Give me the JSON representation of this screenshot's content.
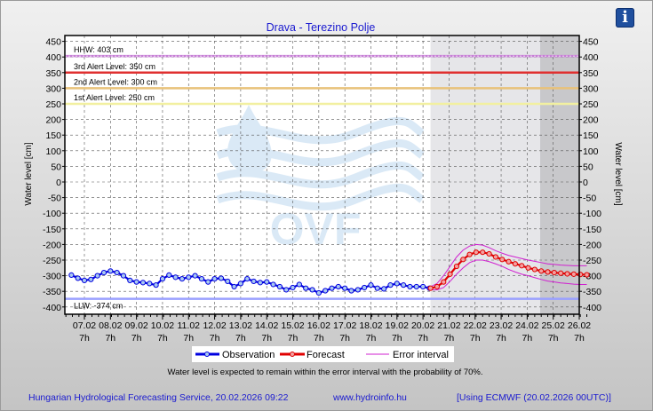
{
  "info_icon": "info-icon",
  "chart_data": {
    "type": "line",
    "title": "Drava - Terezino Polje",
    "ylabel": "Water level [cm]",
    "ylabel_right": "Water level [cm]",
    "ylim": [
      -425,
      460
    ],
    "yticks": [
      450,
      400,
      350,
      300,
      250,
      200,
      150,
      100,
      50,
      0,
      -50,
      -100,
      -150,
      -200,
      -250,
      -300,
      -350,
      -400
    ],
    "xlim_days": [
      6.25,
      26.29
    ],
    "xticks": [
      {
        "day": 7,
        "label": "07.02",
        "sub": "7h"
      },
      {
        "day": 8,
        "label": "08.02",
        "sub": "7h"
      },
      {
        "day": 9,
        "label": "09.02",
        "sub": "7h"
      },
      {
        "day": 10,
        "label": "10.02",
        "sub": "7h"
      },
      {
        "day": 11,
        "label": "11.02",
        "sub": "7h"
      },
      {
        "day": 12,
        "label": "12.02",
        "sub": "7h"
      },
      {
        "day": 13,
        "label": "13.02",
        "sub": "7h"
      },
      {
        "day": 14,
        "label": "14.02",
        "sub": "7h"
      },
      {
        "day": 15,
        "label": "15.02",
        "sub": "7h"
      },
      {
        "day": 16,
        "label": "16.02",
        "sub": "7h"
      },
      {
        "day": 17,
        "label": "17.02",
        "sub": "7h"
      },
      {
        "day": 18,
        "label": "18.02",
        "sub": "7h"
      },
      {
        "day": 19,
        "label": "19.02",
        "sub": "7h"
      },
      {
        "day": 20,
        "label": "20.02",
        "sub": "7h"
      },
      {
        "day": 21,
        "label": "21.02",
        "sub": "7h"
      },
      {
        "day": 22,
        "label": "22.02",
        "sub": "7h"
      },
      {
        "day": 23,
        "label": "23.02",
        "sub": "7h"
      },
      {
        "day": 24,
        "label": "24.02",
        "sub": "7h"
      },
      {
        "day": 25,
        "label": "25.02",
        "sub": "7h"
      },
      {
        "day": 26,
        "label": "26.02",
        "sub": "7h"
      }
    ],
    "forecast_region_start_day": 20.29,
    "extended_region_start_day": 24.5,
    "levels": [
      {
        "name": "HHW",
        "label": "HHW: 403 cm",
        "value": 403,
        "color": "#c77fd6",
        "dotted": true
      },
      {
        "name": "alert-3",
        "label": "3rd Alert Level: 350 cm",
        "value": 350,
        "color": "#e03030"
      },
      {
        "name": "alert-2",
        "label": "2nd Alert Level: 300 cm",
        "value": 300,
        "color": "#e8c27a"
      },
      {
        "name": "alert-1",
        "label": "1st Alert Level: 250 cm",
        "value": 250,
        "color": "#f2f0a0"
      },
      {
        "name": "LLW",
        "label": "LLW: -374 cm",
        "value": -374,
        "color": "#9aa0ff"
      }
    ],
    "series": [
      {
        "name": "Observation",
        "color": "#0000e0",
        "start_day": 6.5,
        "step_days": 0.25,
        "values": [
          -298,
          -308,
          -315,
          -312,
          -300,
          -290,
          -285,
          -290,
          -300,
          -315,
          -320,
          -322,
          -325,
          -330,
          -310,
          -298,
          -305,
          -310,
          -305,
          -300,
          -310,
          -320,
          -310,
          -308,
          -318,
          -335,
          -325,
          -310,
          -318,
          -322,
          -320,
          -328,
          -335,
          -345,
          -338,
          -328,
          -340,
          -345,
          -355,
          -348,
          -340,
          -335,
          -340,
          -348,
          -345,
          -338,
          -330,
          -340,
          -342,
          -330,
          -325,
          -330,
          -335,
          -335,
          -335,
          -340
        ]
      },
      {
        "name": "Forecast",
        "color": "#e00000",
        "start_day": 20.29,
        "step_days": 0.25,
        "values": [
          -340,
          -335,
          -320,
          -295,
          -270,
          -248,
          -232,
          -225,
          -225,
          -230,
          -240,
          -248,
          -255,
          -262,
          -268,
          -275,
          -280,
          -285,
          -288,
          -290,
          -292,
          -294,
          -295,
          -296,
          -297
        ]
      },
      {
        "name": "Error interval",
        "color": "#d020d0",
        "start_day": 20.29,
        "step_days": 0.25,
        "upper": [
          -335,
          -325,
          -300,
          -270,
          -240,
          -218,
          -205,
          -200,
          -202,
          -210,
          -220,
          -228,
          -235,
          -240,
          -245,
          -250,
          -254,
          -258,
          -262,
          -264,
          -266,
          -267,
          -268,
          -268,
          -268
        ],
        "lower": [
          -345,
          -345,
          -338,
          -318,
          -295,
          -275,
          -258,
          -250,
          -250,
          -255,
          -262,
          -270,
          -280,
          -288,
          -295,
          -300,
          -306,
          -312,
          -317,
          -320,
          -323,
          -325,
          -327,
          -328,
          -328
        ]
      }
    ],
    "legend": {
      "placement": "bottom",
      "items": [
        "Observation",
        "Forecast",
        "Error interval"
      ]
    },
    "note": "Water level is expected to remain within the error interval with the probability of 70%.",
    "watermark": "OVF",
    "grid": true
  },
  "footer": {
    "service": "Hungarian Hydrological Forecasting Service, 20.02.2026 09:22",
    "website": "www.hydroinfo.hu",
    "model": "[Using ECMWF (20.02.2026  00UTC)]"
  }
}
